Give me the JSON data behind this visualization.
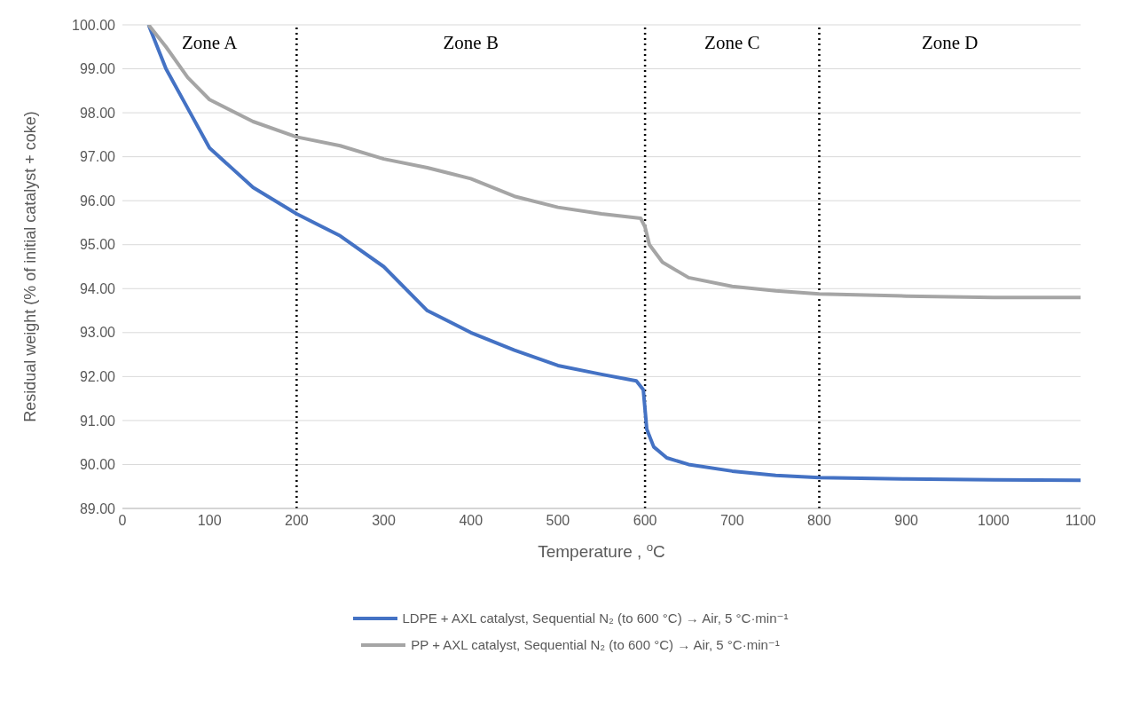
{
  "chart_data": {
    "type": "line",
    "xlabel": "Temperature , $^{o}$C",
    "ylabel": "Residual weight (% of initial catalyst + coke)",
    "xlim": [
      0,
      1100
    ],
    "xticks": [
      0,
      100,
      200,
      300,
      400,
      500,
      600,
      700,
      800,
      900,
      1000,
      1100
    ],
    "ylim": [
      89,
      100
    ],
    "yticks": [
      {
        "value": 89,
        "label": "89.00"
      },
      {
        "value": 90,
        "label": "90.00"
      },
      {
        "value": 91,
        "label": "91.00"
      },
      {
        "value": 92,
        "label": "92.00"
      },
      {
        "value": 93,
        "label": "93.00"
      },
      {
        "value": 94,
        "label": "94.00"
      },
      {
        "value": 95,
        "label": "95.00"
      },
      {
        "value": 96,
        "label": "96.00"
      },
      {
        "value": 97,
        "label": "97.00"
      },
      {
        "value": 98,
        "label": "98.00"
      },
      {
        "value": 99,
        "label": "99.00"
      },
      {
        "value": 100,
        "label": "100.00"
      }
    ],
    "grid": "y",
    "legend": "bottom",
    "marker": "none",
    "line_style": "solid",
    "ref_lines": [
      {
        "axis": "x",
        "value": 200,
        "color": "#000000",
        "line_style": "dotted"
      },
      {
        "axis": "x",
        "value": 600,
        "color": "#000000",
        "line_style": "dotted"
      },
      {
        "axis": "x",
        "value": 800,
        "color": "#000000",
        "line_style": "dotted"
      }
    ],
    "annotations": [
      "Zone A",
      "Zone B",
      "Zone C",
      "Zone D"
    ],
    "series": [
      {
        "name": "LDPE + AXL catalyst, Sequential N₂ (to 600 °C) → Air, 5 °C·min⁻¹",
        "color": "#4472c4",
        "x": [
          30,
          50,
          75,
          100,
          150,
          200,
          250,
          300,
          350,
          400,
          450,
          500,
          550,
          590,
          598,
          602,
          610,
          625,
          650,
          700,
          750,
          800,
          900,
          1000,
          1100
        ],
        "values": [
          100,
          99.0,
          98.1,
          97.2,
          96.3,
          95.7,
          95.2,
          94.5,
          93.5,
          93.0,
          92.6,
          92.25,
          92.05,
          91.9,
          91.7,
          90.8,
          90.4,
          90.15,
          90.0,
          89.85,
          89.75,
          89.7,
          89.67,
          89.65,
          89.64
        ]
      },
      {
        "name": "PP + AXL catalyst, Sequential N₂ (to 600 °C) → Air, 5 °C·min⁻¹",
        "color": "#a5a5a5",
        "x": [
          30,
          50,
          75,
          100,
          150,
          200,
          250,
          300,
          350,
          400,
          450,
          500,
          550,
          595,
          600,
          605,
          620,
          650,
          700,
          750,
          800,
          900,
          1000,
          1100
        ],
        "values": [
          100,
          99.5,
          98.8,
          98.3,
          97.8,
          97.45,
          97.25,
          96.95,
          96.75,
          96.5,
          96.1,
          95.85,
          95.7,
          95.6,
          95.4,
          95.0,
          94.6,
          94.25,
          94.05,
          93.95,
          93.88,
          93.83,
          93.8,
          93.8
        ]
      }
    ]
  }
}
